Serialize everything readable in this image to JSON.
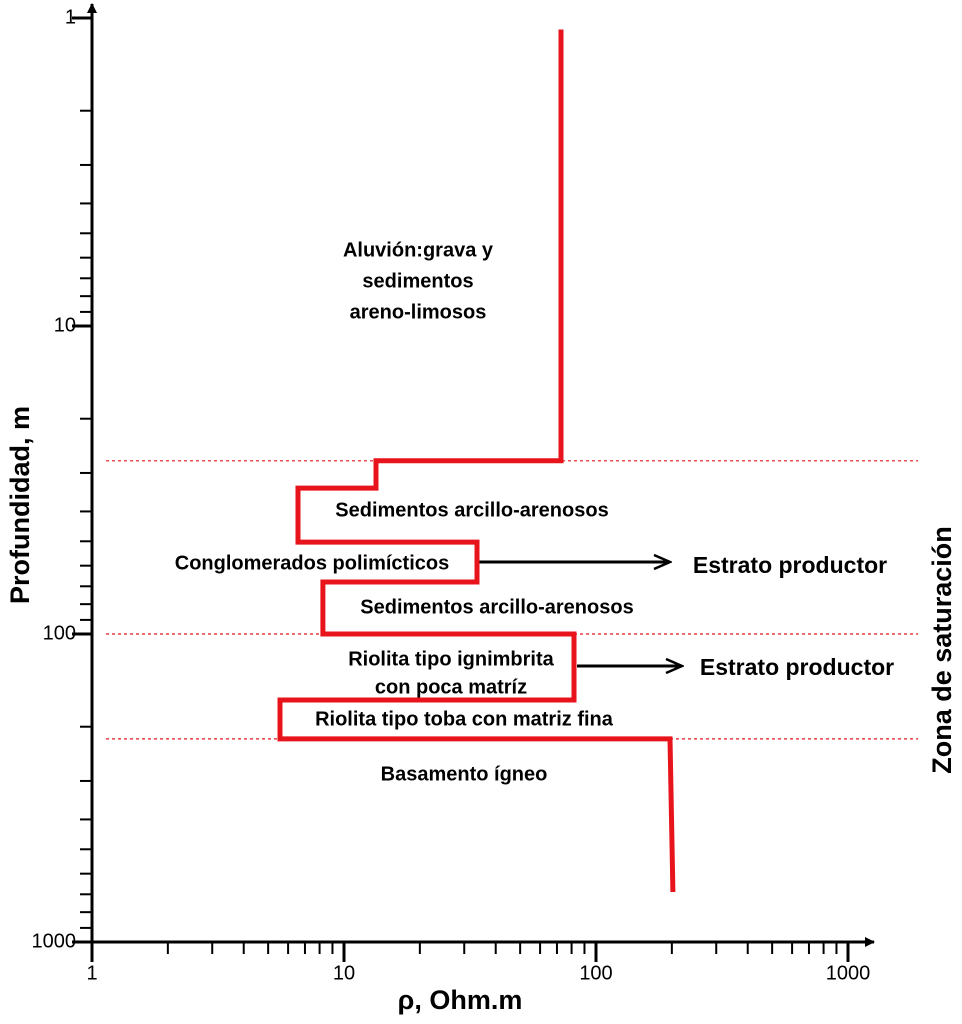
{
  "chart_data": {
    "type": "line",
    "x_label": "ρ, Ohm.m",
    "y_label": "Profundidad, m",
    "side_label": "Zona de saturación",
    "x_log": true,
    "y_log": true,
    "y_inverted": true,
    "xlim": [
      1,
      1000
    ],
    "xticks": [
      1,
      10,
      100,
      1000
    ],
    "ylim": [
      1,
      1000
    ],
    "yticks": [
      1,
      10,
      100,
      1000
    ],
    "series": [
      {
        "color": "#e8141c",
        "x": [
          72.6,
          72.6,
          13.4,
          13.4,
          6.57,
          6.57,
          33.7,
          33.7,
          8.25,
          8.25,
          81.8,
          81.8,
          5.57,
          5.57,
          196.7,
          202
        ],
        "values": [
          1.09,
          27.4,
          27.4,
          33.6,
          33.6,
          50.3,
          50.3,
          67.8,
          67.8,
          100,
          100,
          163.8,
          163.8,
          219,
          219,
          688
        ]
      }
    ],
    "reference_depths": [
      27.4,
      100,
      219
    ],
    "annotations": [
      [
        "Aluvión:grava y",
        "sedimentos",
        "areno-limosos"
      ],
      [
        "Sedimentos arcillo-arenosos"
      ],
      [
        "Conglomerados polimícticos"
      ],
      [
        "Estrato productor"
      ],
      [
        "Sedimentos arcillo-arenosos"
      ],
      [
        "Riolita tipo ignimbrita",
        "con poca matríz"
      ],
      [
        "Estrato productor"
      ],
      [
        "Riolita tipo toba con matriz fina"
      ],
      [
        "Basamento ígneo"
      ]
    ]
  }
}
